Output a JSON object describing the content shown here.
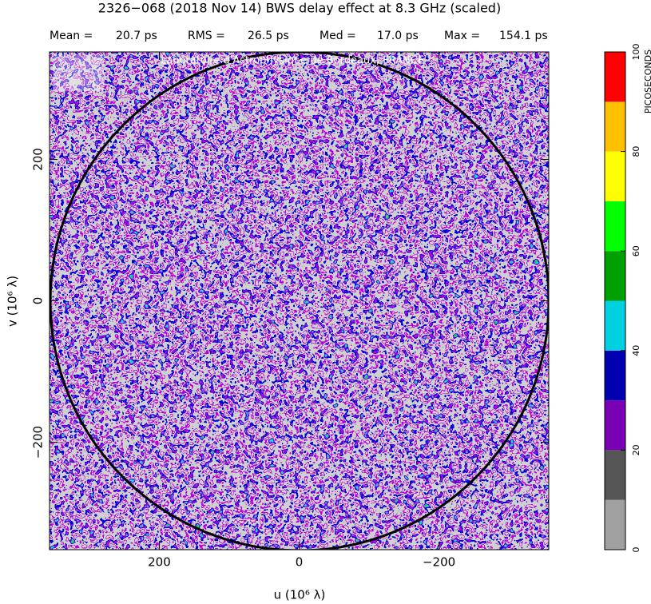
{
  "chart_data": {
    "type": "uvmap",
    "title": "2326−068  (2018 Nov 14)   BWS delay effect at  8.3 GHz (scaled)",
    "stats": [
      {
        "label": "Mean =",
        "value": "20.7 ps"
      },
      {
        "label": "RMS =",
        "value": "26.5 ps"
      },
      {
        "label": "Med =",
        "value": "17.0 ps"
      },
      {
        "label": "Max =",
        "value": "154.1 ps"
      }
    ],
    "watermark": "Laboratoire d'Astrophysique de Bordeaux, FRANCE",
    "x_label": "u  (10⁶ λ)",
    "y_label": "v  (10⁶ λ)",
    "xlim": [
      357,
      -357
    ],
    "ylim": [
      -352,
      352
    ],
    "xticks": [
      200,
      0,
      {
        "value": -200,
        "label": "−200"
      }
    ],
    "yticks": [
      {
        "value": -200,
        "label": "−200"
      },
      0,
      200
    ],
    "colorbar": {
      "label": "PICOSECONDS",
      "levels": [
        0,
        10,
        20,
        30,
        40,
        50,
        60,
        70,
        80,
        90,
        100
      ],
      "colors": [
        "#a0a0a0",
        "#555555",
        "#7a00b4",
        "#0000b0",
        "#00d0e0",
        "#00a000",
        "#00ff00",
        "#ffff00",
        "#ffc000",
        "#ff0000"
      ],
      "ticks": [
        0,
        20,
        40,
        60,
        80,
        100
      ]
    }
  }
}
